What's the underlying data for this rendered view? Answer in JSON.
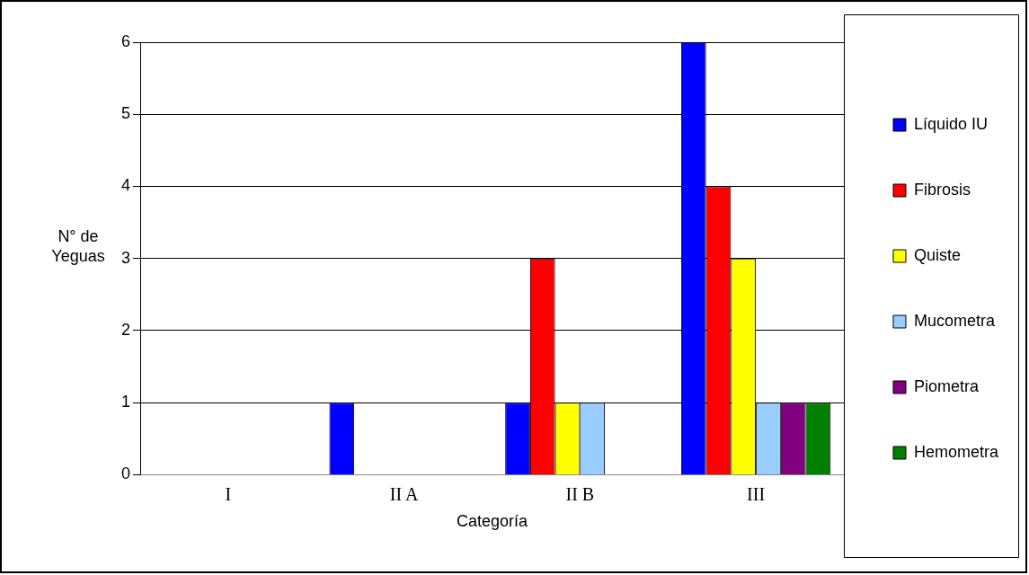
{
  "chart_data": {
    "type": "bar",
    "xlabel": "Categoría",
    "ylabel": "N° de Yeguas",
    "categories": [
      "I",
      "II A",
      "II B",
      "III"
    ],
    "series": [
      {
        "name": "Líquido IU",
        "color": "#0000ff",
        "values": [
          0,
          1,
          1,
          6
        ]
      },
      {
        "name": "Fibrosis",
        "color": "#ff0000",
        "values": [
          0,
          0,
          3,
          4
        ]
      },
      {
        "name": "Quiste",
        "color": "#ffff00",
        "values": [
          0,
          0,
          1,
          3
        ]
      },
      {
        "name": "Mucometra",
        "color": "#99ccff",
        "values": [
          0,
          0,
          1,
          1
        ]
      },
      {
        "name": "Piometra",
        "color": "#800080",
        "values": [
          0,
          0,
          0,
          1
        ]
      },
      {
        "name": "Hemometra",
        "color": "#008000",
        "values": [
          0,
          0,
          0,
          1
        ]
      }
    ],
    "ylim": [
      0,
      6
    ],
    "yticks": [
      0,
      1,
      2,
      3,
      4,
      5,
      6
    ],
    "grid": "y",
    "legend": "right"
  }
}
